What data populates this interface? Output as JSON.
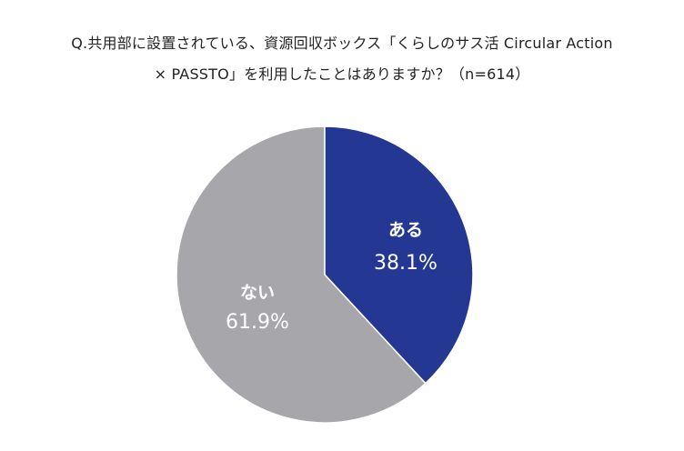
{
  "title": {
    "line1": "Q.共用部に設置されている、資源回収ボックス「くらしのサス活  Circular Action",
    "line2": "× PASSTO」を利用したことはありますか？（n=614）"
  },
  "colors": {
    "aru": "#243893",
    "nai": "#a7a6aa"
  },
  "chart_data": {
    "type": "pie",
    "title": "Q.共用部に設置されている、資源回収ボックス「くらしのサス活 Circular Action × PASSTO」を利用したことはありますか？（n=614）",
    "n": 614,
    "categories": [
      "ある",
      "ない"
    ],
    "values": [
      38.1,
      61.9
    ],
    "unit": "%",
    "start_angle": "12 o'clock, clockwise",
    "colors": [
      "#243893",
      "#a7a6aa"
    ],
    "legend": "none (labels inside slices)"
  },
  "labels": {
    "aru": {
      "name": "ある",
      "value": "38.1%"
    },
    "nai": {
      "name": "ない",
      "value": "61.9%"
    }
  }
}
